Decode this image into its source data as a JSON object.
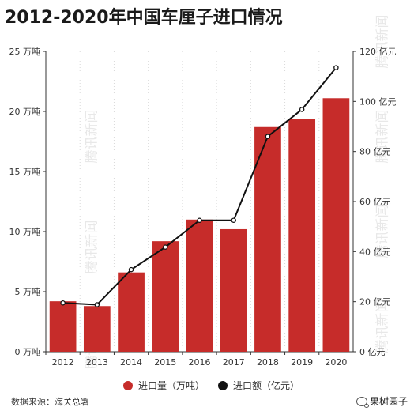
{
  "title": "2012-2020年中国车厘子进口情况",
  "source": "数据来源：海关总署",
  "brand": "果树园子",
  "watermark": "腾讯新闻",
  "colors": {
    "bar": "#c62c2a",
    "line": "#111111",
    "grid": "#d9d9d9",
    "axis": "#333333"
  },
  "chart_data": {
    "type": "bar",
    "categories": [
      "2012",
      "2013",
      "2014",
      "2015",
      "2016",
      "2017",
      "2018",
      "2019",
      "2020"
    ],
    "series": [
      {
        "name": "进口量（万吨）",
        "type": "bar",
        "axis": "left",
        "values": [
          4.2,
          3.8,
          6.6,
          9.2,
          11.0,
          10.2,
          18.7,
          19.4,
          21.1
        ]
      },
      {
        "name": "进口额（亿元）",
        "type": "line",
        "axis": "right",
        "values": [
          19.5,
          18.8,
          32.8,
          41.8,
          52.5,
          52.5,
          86.0,
          96.8,
          113.5
        ]
      }
    ],
    "left_axis": {
      "min": 0,
      "max": 25,
      "ticks": [
        0,
        5,
        10,
        15,
        20,
        25
      ],
      "tick_labels": [
        "0 万吨",
        "5 万吨",
        "10 万吨",
        "15 万吨",
        "20 万吨",
        "25 万吨"
      ]
    },
    "right_axis": {
      "min": 0,
      "max": 120,
      "ticks": [
        0,
        20,
        40,
        60,
        80,
        100,
        120
      ],
      "tick_labels": [
        "0 亿元",
        "20 亿元",
        "40 亿元",
        "60 亿元",
        "80 亿元",
        "100 亿元",
        "120 亿元"
      ]
    },
    "legend": {
      "position": "bottom",
      "items": [
        "进口量（万吨）",
        "进口额（亿元）"
      ]
    },
    "grid": "vertical-dotted"
  }
}
